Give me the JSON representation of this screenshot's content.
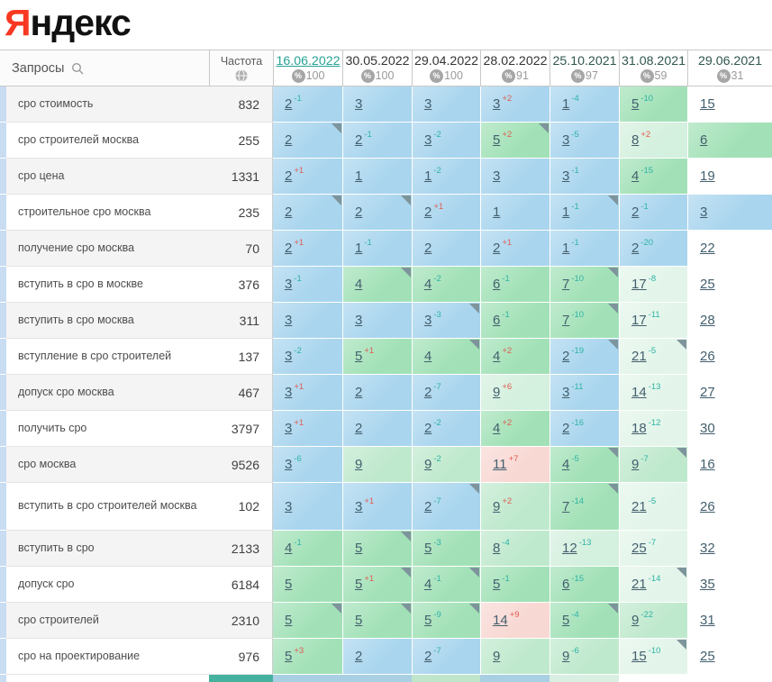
{
  "logo": {
    "first_letter": "Я",
    "rest": "ндекс"
  },
  "table": {
    "queries_header": "Запросы",
    "frequency_header": "Частота",
    "dates": [
      {
        "label": "16.06.2022",
        "percent": "100",
        "state": "cur"
      },
      {
        "label": "30.05.2022",
        "percent": "100",
        "state": "recent"
      },
      {
        "label": "29.04.2022",
        "percent": "100",
        "state": "recent"
      },
      {
        "label": "28.02.2022",
        "percent": "91",
        "state": "recent"
      },
      {
        "label": "25.10.2021",
        "percent": "97",
        "state": "old"
      },
      {
        "label": "31.08.2021",
        "percent": "59",
        "state": "old"
      },
      {
        "label": "29.06.2021",
        "percent": "31",
        "state": "old"
      }
    ],
    "rows": [
      {
        "query": "сро стоимость",
        "frequency": "832",
        "cells": [
          {
            "p": "2",
            "d": "-1",
            "dir": "up",
            "bg": "b"
          },
          {
            "p": "3",
            "d": "",
            "dir": "",
            "bg": "b"
          },
          {
            "p": "3",
            "d": "",
            "dir": "",
            "bg": "b"
          },
          {
            "p": "3",
            "d": "+2",
            "dir": "down",
            "bg": "b"
          },
          {
            "p": "1",
            "d": "-4",
            "dir": "up",
            "bg": "b"
          },
          {
            "p": "5",
            "d": "-10",
            "dir": "up",
            "bg": "g"
          },
          {
            "p": "15",
            "d": "",
            "dir": "",
            "bg": "w"
          }
        ]
      },
      {
        "query": "сро строителей москва",
        "frequency": "255",
        "cells": [
          {
            "p": "2",
            "d": "",
            "dir": "",
            "bg": "b",
            "tri": true
          },
          {
            "p": "2",
            "d": "-1",
            "dir": "up",
            "bg": "b"
          },
          {
            "p": "3",
            "d": "-2",
            "dir": "up",
            "bg": "b"
          },
          {
            "p": "5",
            "d": "+2",
            "dir": "down",
            "bg": "g",
            "tri": true
          },
          {
            "p": "3",
            "d": "-5",
            "dir": "up",
            "bg": "b"
          },
          {
            "p": "8",
            "d": "+2",
            "dir": "down",
            "bg": "pg"
          },
          {
            "p": "6",
            "d": "",
            "dir": "",
            "bg": "g"
          }
        ]
      },
      {
        "query": "сро цена",
        "frequency": "1331",
        "cells": [
          {
            "p": "2",
            "d": "+1",
            "dir": "down",
            "bg": "b"
          },
          {
            "p": "1",
            "d": "",
            "dir": "",
            "bg": "b"
          },
          {
            "p": "1",
            "d": "-2",
            "dir": "up",
            "bg": "b"
          },
          {
            "p": "3",
            "d": "",
            "dir": "",
            "bg": "b"
          },
          {
            "p": "3",
            "d": "-1",
            "dir": "up",
            "bg": "b"
          },
          {
            "p": "4",
            "d": "-15",
            "dir": "up",
            "bg": "g"
          },
          {
            "p": "19",
            "d": "",
            "dir": "",
            "bg": "w"
          }
        ]
      },
      {
        "query": "строительное сро москва",
        "frequency": "235",
        "cells": [
          {
            "p": "2",
            "d": "",
            "dir": "",
            "bg": "b",
            "tri": true
          },
          {
            "p": "2",
            "d": "",
            "dir": "",
            "bg": "b",
            "tri": true
          },
          {
            "p": "2",
            "d": "+1",
            "dir": "down",
            "bg": "b"
          },
          {
            "p": "1",
            "d": "",
            "dir": "",
            "bg": "b"
          },
          {
            "p": "1",
            "d": "-1",
            "dir": "up",
            "bg": "b",
            "tri": true
          },
          {
            "p": "2",
            "d": "-1",
            "dir": "up",
            "bg": "b"
          },
          {
            "p": "3",
            "d": "",
            "dir": "",
            "bg": "b"
          }
        ]
      },
      {
        "query": "получение сро москва",
        "frequency": "70",
        "cells": [
          {
            "p": "2",
            "d": "+1",
            "dir": "down",
            "bg": "b"
          },
          {
            "p": "1",
            "d": "-1",
            "dir": "up",
            "bg": "b"
          },
          {
            "p": "2",
            "d": "",
            "dir": "",
            "bg": "b"
          },
          {
            "p": "2",
            "d": "+1",
            "dir": "down",
            "bg": "b"
          },
          {
            "p": "1",
            "d": "-1",
            "dir": "up",
            "bg": "b"
          },
          {
            "p": "2",
            "d": "-20",
            "dir": "up",
            "bg": "b"
          },
          {
            "p": "22",
            "d": "",
            "dir": "",
            "bg": "w"
          }
        ]
      },
      {
        "query": "вступить в сро в москве",
        "frequency": "376",
        "cells": [
          {
            "p": "3",
            "d": "-1",
            "dir": "up",
            "bg": "b"
          },
          {
            "p": "4",
            "d": "",
            "dir": "",
            "bg": "g",
            "tri": true
          },
          {
            "p": "4",
            "d": "-2",
            "dir": "up",
            "bg": "g"
          },
          {
            "p": "6",
            "d": "-1",
            "dir": "up",
            "bg": "g"
          },
          {
            "p": "7",
            "d": "-10",
            "dir": "up",
            "bg": "g",
            "tri": true
          },
          {
            "p": "17",
            "d": "-8",
            "dir": "up",
            "bg": "pg2"
          },
          {
            "p": "25",
            "d": "",
            "dir": "",
            "bg": "w"
          }
        ]
      },
      {
        "query": "вступить в сро москва",
        "frequency": "311",
        "cells": [
          {
            "p": "3",
            "d": "",
            "dir": "",
            "bg": "b"
          },
          {
            "p": "3",
            "d": "",
            "dir": "",
            "bg": "b"
          },
          {
            "p": "3",
            "d": "-3",
            "dir": "up",
            "bg": "b",
            "tri": true
          },
          {
            "p": "6",
            "d": "-1",
            "dir": "up",
            "bg": "g"
          },
          {
            "p": "7",
            "d": "-10",
            "dir": "up",
            "bg": "g",
            "tri": true
          },
          {
            "p": "17",
            "d": "-11",
            "dir": "up",
            "bg": "pg2"
          },
          {
            "p": "28",
            "d": "",
            "dir": "",
            "bg": "w"
          }
        ]
      },
      {
        "query": "вступление в сро строителей",
        "frequency": "137",
        "cells": [
          {
            "p": "3",
            "d": "-2",
            "dir": "up",
            "bg": "b"
          },
          {
            "p": "5",
            "d": "+1",
            "dir": "down",
            "bg": "g"
          },
          {
            "p": "4",
            "d": "",
            "dir": "",
            "bg": "g",
            "tri": true
          },
          {
            "p": "4",
            "d": "+2",
            "dir": "down",
            "bg": "g"
          },
          {
            "p": "2",
            "d": "-19",
            "dir": "up",
            "bg": "b",
            "tri": true
          },
          {
            "p": "21",
            "d": "-5",
            "dir": "up",
            "bg": "pg2",
            "tri": true
          },
          {
            "p": "26",
            "d": "",
            "dir": "",
            "bg": "w"
          }
        ]
      },
      {
        "query": "допуск сро москва",
        "frequency": "467",
        "cells": [
          {
            "p": "3",
            "d": "+1",
            "dir": "down",
            "bg": "b"
          },
          {
            "p": "2",
            "d": "",
            "dir": "",
            "bg": "b"
          },
          {
            "p": "2",
            "d": "-7",
            "dir": "up",
            "bg": "b"
          },
          {
            "p": "9",
            "d": "+6",
            "dir": "down",
            "bg": "pg"
          },
          {
            "p": "3",
            "d": "-11",
            "dir": "up",
            "bg": "b"
          },
          {
            "p": "14",
            "d": "-13",
            "dir": "up",
            "bg": "pg2"
          },
          {
            "p": "27",
            "d": "",
            "dir": "",
            "bg": "w"
          }
        ]
      },
      {
        "query": "получить сро",
        "frequency": "3797",
        "cells": [
          {
            "p": "3",
            "d": "+1",
            "dir": "down",
            "bg": "b"
          },
          {
            "p": "2",
            "d": "",
            "dir": "",
            "bg": "b"
          },
          {
            "p": "2",
            "d": "-2",
            "dir": "up",
            "bg": "b"
          },
          {
            "p": "4",
            "d": "+2",
            "dir": "down",
            "bg": "g"
          },
          {
            "p": "2",
            "d": "-16",
            "dir": "up",
            "bg": "b"
          },
          {
            "p": "18",
            "d": "-12",
            "dir": "up",
            "bg": "pg2"
          },
          {
            "p": "30",
            "d": "",
            "dir": "",
            "bg": "w"
          }
        ]
      },
      {
        "query": "сро москва",
        "frequency": "9526",
        "cells": [
          {
            "p": "3",
            "d": "-6",
            "dir": "up",
            "bg": "b"
          },
          {
            "p": "9",
            "d": "",
            "dir": "",
            "bg": "gm"
          },
          {
            "p": "9",
            "d": "-2",
            "dir": "up",
            "bg": "gm"
          },
          {
            "p": "11",
            "d": "+7",
            "dir": "down",
            "bg": "pk"
          },
          {
            "p": "4",
            "d": "-5",
            "dir": "up",
            "bg": "g",
            "tri": true
          },
          {
            "p": "9",
            "d": "-7",
            "dir": "up",
            "bg": "gm",
            "tri": true
          },
          {
            "p": "16",
            "d": "",
            "dir": "",
            "bg": "w"
          }
        ]
      },
      {
        "query": "вступить в сро строителей москва",
        "frequency": "102",
        "tall": true,
        "cells": [
          {
            "p": "3",
            "d": "",
            "dir": "",
            "bg": "b"
          },
          {
            "p": "3",
            "d": "+1",
            "dir": "down",
            "bg": "b"
          },
          {
            "p": "2",
            "d": "-7",
            "dir": "up",
            "bg": "b",
            "tri": true
          },
          {
            "p": "9",
            "d": "+2",
            "dir": "down",
            "bg": "gm"
          },
          {
            "p": "7",
            "d": "-14",
            "dir": "up",
            "bg": "g",
            "tri": true
          },
          {
            "p": "21",
            "d": "-5",
            "dir": "up",
            "bg": "pg2"
          },
          {
            "p": "26",
            "d": "",
            "dir": "",
            "bg": "w"
          }
        ]
      },
      {
        "query": "вступить в сро",
        "frequency": "2133",
        "cells": [
          {
            "p": "4",
            "d": "-1",
            "dir": "up",
            "bg": "g"
          },
          {
            "p": "5",
            "d": "",
            "dir": "",
            "bg": "g",
            "tri": true
          },
          {
            "p": "5",
            "d": "-3",
            "dir": "up",
            "bg": "g"
          },
          {
            "p": "8",
            "d": "-4",
            "dir": "up",
            "bg": "gm"
          },
          {
            "p": "12",
            "d": "-13",
            "dir": "up",
            "bg": "pg"
          },
          {
            "p": "25",
            "d": "-7",
            "dir": "up",
            "bg": "pg2"
          },
          {
            "p": "32",
            "d": "",
            "dir": "",
            "bg": "w"
          }
        ]
      },
      {
        "query": "допуск сро",
        "frequency": "6184",
        "cells": [
          {
            "p": "5",
            "d": "",
            "dir": "",
            "bg": "g"
          },
          {
            "p": "5",
            "d": "+1",
            "dir": "down",
            "bg": "g",
            "tri": true
          },
          {
            "p": "4",
            "d": "-1",
            "dir": "up",
            "bg": "g",
            "tri": true
          },
          {
            "p": "5",
            "d": "-1",
            "dir": "up",
            "bg": "g"
          },
          {
            "p": "6",
            "d": "-15",
            "dir": "up",
            "bg": "g"
          },
          {
            "p": "21",
            "d": "-14",
            "dir": "up",
            "bg": "pg2",
            "tri": true
          },
          {
            "p": "35",
            "d": "",
            "dir": "",
            "bg": "w"
          }
        ]
      },
      {
        "query": "сро строителей",
        "frequency": "2310",
        "cells": [
          {
            "p": "5",
            "d": "",
            "dir": "",
            "bg": "g",
            "tri": true
          },
          {
            "p": "5",
            "d": "",
            "dir": "",
            "bg": "g",
            "tri": true
          },
          {
            "p": "5",
            "d": "-9",
            "dir": "up",
            "bg": "g",
            "tri": true
          },
          {
            "p": "14",
            "d": "+9",
            "dir": "down",
            "bg": "pk"
          },
          {
            "p": "5",
            "d": "-4",
            "dir": "up",
            "bg": "g",
            "tri": true
          },
          {
            "p": "9",
            "d": "-22",
            "dir": "up",
            "bg": "gm"
          },
          {
            "p": "31",
            "d": "",
            "dir": "",
            "bg": "w"
          }
        ]
      },
      {
        "query": "сро на проектирование",
        "frequency": "976",
        "cells": [
          {
            "p": "5",
            "d": "+3",
            "dir": "down",
            "bg": "g"
          },
          {
            "p": "2",
            "d": "",
            "dir": "",
            "bg": "b"
          },
          {
            "p": "2",
            "d": "-7",
            "dir": "up",
            "bg": "b"
          },
          {
            "p": "9",
            "d": "",
            "dir": "",
            "bg": "gm"
          },
          {
            "p": "9",
            "d": "-6",
            "dir": "up",
            "bg": "gm"
          },
          {
            "p": "15",
            "d": "-10",
            "dir": "up",
            "bg": "pg2",
            "tri": true
          },
          {
            "p": "25",
            "d": "",
            "dir": "",
            "bg": "w"
          }
        ]
      }
    ],
    "next_row_peek": {
      "colors": [
        "#f0f0f0",
        "#ffffff",
        "#45b2a0",
        "#a9cfe2",
        "#a9cfe2",
        "#bfe5cb",
        "#a9cfe2",
        "#d9efe2",
        "#ffffff"
      ]
    }
  },
  "colors": {
    "accent_teal": "#27a294",
    "change_up": "#2db3a4",
    "change_down": "#e05c52",
    "top3_blue": "#a9d5ee",
    "top10_green": "#a2e1b7",
    "dropped_pink": "#f8d8d3",
    "logo_red": "#f83822"
  }
}
